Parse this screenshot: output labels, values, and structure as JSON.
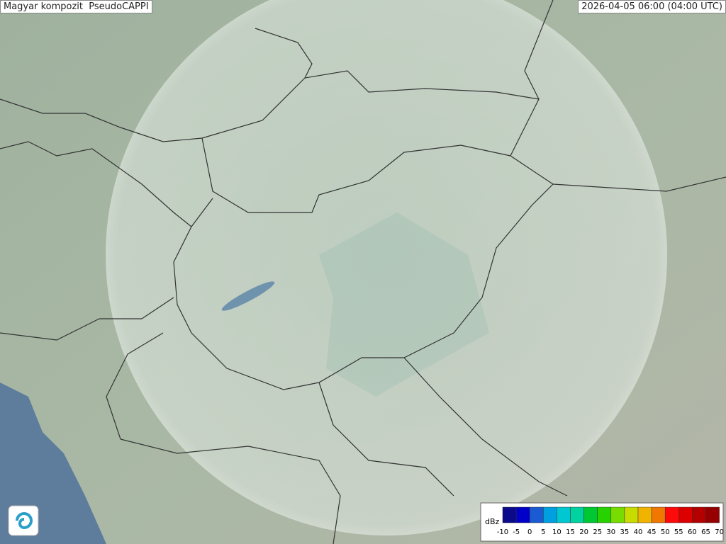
{
  "header": {
    "title": "Magyar kompozit  PseudoCAPPI",
    "timestamp": "2026-04-05 06:00 (04:00 UTC)"
  },
  "legend": {
    "unit": "dBz",
    "values": [
      -10,
      -5,
      0,
      5,
      10,
      15,
      20,
      25,
      30,
      35,
      40,
      45,
      50,
      55,
      60,
      65,
      70
    ],
    "colors": [
      "#0a0a8a",
      "#0000c8",
      "#1a5ad2",
      "#00a0e0",
      "#00c8d2",
      "#00d2a0",
      "#00c832",
      "#28d200",
      "#78dc00",
      "#c8dc00",
      "#f0b400",
      "#f07800",
      "#ff0a0a",
      "#dc0000",
      "#b40000",
      "#960000"
    ]
  }
}
